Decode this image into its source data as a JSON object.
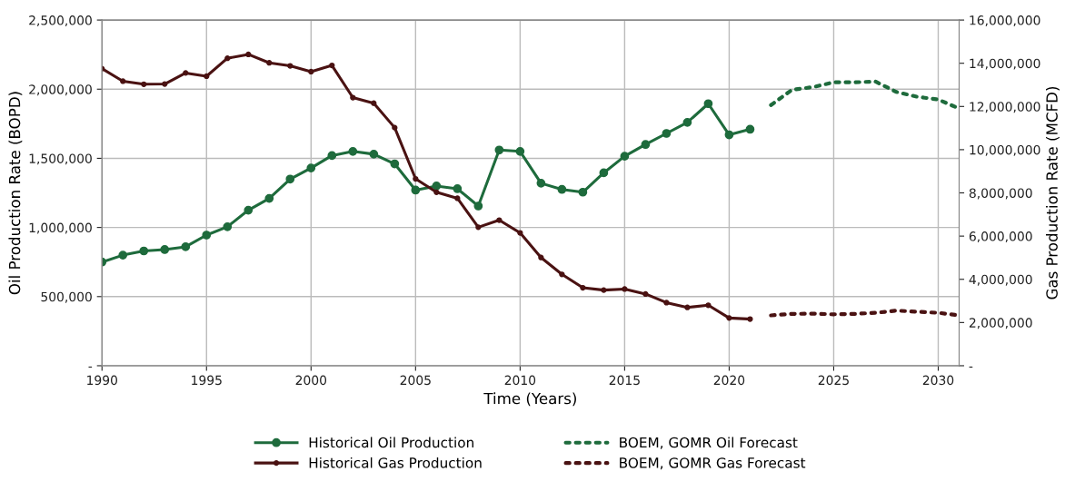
{
  "chart_data": {
    "type": "line",
    "xlabel": "Time (Years)",
    "ylabel": "Oil Production Rate (BOPD)",
    "y2label": "Gas Production Rate (MCFD)",
    "xlim": [
      1990,
      2031
    ],
    "xticks": [
      1990,
      1995,
      2000,
      2005,
      2010,
      2015,
      2020,
      2025,
      2030
    ],
    "ylim": [
      0,
      2500000
    ],
    "yticks": [
      {
        "value": 0,
        "label": "-"
      },
      {
        "value": 500000,
        "label": "500,000"
      },
      {
        "value": 1000000,
        "label": "1,000,000"
      },
      {
        "value": 1500000,
        "label": "1,500,000"
      },
      {
        "value": 2000000,
        "label": "2,000,000"
      },
      {
        "value": 2500000,
        "label": "2,500,000"
      }
    ],
    "y2lim": [
      0,
      16000000
    ],
    "y2ticks": [
      {
        "value": 0,
        "label": "-"
      },
      {
        "value": 2000000,
        "label": "2,000,000"
      },
      {
        "value": 4000000,
        "label": "4,000,000"
      },
      {
        "value": 6000000,
        "label": "6,000,000"
      },
      {
        "value": 8000000,
        "label": "8,000,000"
      },
      {
        "value": 10000000,
        "label": "10,000,000"
      },
      {
        "value": 12000000,
        "label": "12,000,000"
      },
      {
        "value": 14000000,
        "label": "14,000,000"
      },
      {
        "value": 16000000,
        "label": "16,000,000"
      }
    ],
    "grid": true,
    "legend": "bottom",
    "series": [
      {
        "name": "Historical Oil Production",
        "color": "#1e6b3c",
        "marker": "circle",
        "line_style": "solid",
        "x": [
          1990,
          1991,
          1992,
          1993,
          1994,
          1995,
          1996,
          1997,
          1998,
          1999,
          2000,
          2001,
          2002,
          2003,
          2004,
          2005,
          2006,
          2007,
          2008,
          2009,
          2010,
          2011,
          2012,
          2013,
          2014,
          2015,
          2016,
          2017,
          2018,
          2019,
          2020,
          2021
        ],
        "values": [
          750000,
          800000,
          830000,
          840000,
          860000,
          945000,
          1005000,
          1125000,
          1210000,
          1350000,
          1430000,
          1520000,
          1550000,
          1530000,
          1460000,
          1270000,
          1300000,
          1280000,
          1155000,
          1560000,
          1550000,
          1320000,
          1275000,
          1255000,
          1395000,
          1515000,
          1600000,
          1680000,
          1760000,
          1895000,
          1670000,
          1710000
        ]
      },
      {
        "name": "Historical Gas Production",
        "color": "#4a1212",
        "marker": "circle",
        "line_style": "solid",
        "axis": "y2",
        "x": [
          1990,
          1991,
          1992,
          1993,
          1994,
          1995,
          1996,
          1997,
          1998,
          1999,
          2000,
          2001,
          2002,
          2003,
          2004,
          2005,
          2006,
          2007,
          2008,
          2009,
          2010,
          2011,
          2012,
          2013,
          2014,
          2015,
          2016,
          2017,
          2018,
          2019,
          2020,
          2021
        ],
        "values": [
          13750000,
          13170000,
          13030000,
          13040000,
          13550000,
          13400000,
          14230000,
          14410000,
          14020000,
          13880000,
          13610000,
          13900000,
          12410000,
          12150000,
          11020000,
          8650000,
          8030000,
          7750000,
          6410000,
          6740000,
          6150000,
          5010000,
          4230000,
          3610000,
          3500000,
          3550000,
          3320000,
          2920000,
          2700000,
          2800000,
          2210000,
          2160000
        ]
      },
      {
        "name": "BOEM, GOMR Oil Forecast",
        "color": "#1e6b3c",
        "marker": "none",
        "line_style": "dotted",
        "x": [
          2022,
          2023,
          2024,
          2025,
          2026,
          2027,
          2028,
          2029,
          2030,
          2031
        ],
        "values": [
          1885000,
          1995000,
          2015000,
          2050000,
          2050000,
          2055000,
          1980000,
          1945000,
          1925000,
          1860000
        ]
      },
      {
        "name": "BOEM, GOMR Gas Forecast",
        "color": "#4a1212",
        "marker": "none",
        "line_style": "dotted",
        "axis": "y2",
        "x": [
          2022,
          2023,
          2024,
          2025,
          2026,
          2027,
          2028,
          2029,
          2030,
          2031
        ],
        "values": [
          2330000,
          2400000,
          2410000,
          2380000,
          2400000,
          2450000,
          2550000,
          2500000,
          2450000,
          2330000
        ]
      }
    ]
  }
}
